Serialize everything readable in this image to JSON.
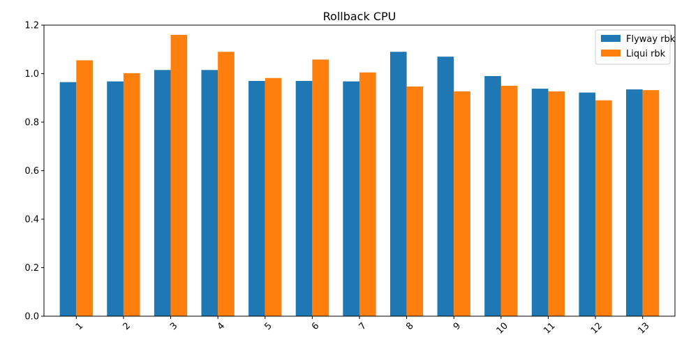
{
  "chart_data": {
    "type": "bar",
    "title": "Rollback CPU",
    "xlabel": "",
    "ylabel": "",
    "categories": [
      "1",
      "2",
      "3",
      "4",
      "5",
      "6",
      "7",
      "8",
      "9",
      "10",
      "11",
      "12",
      "13"
    ],
    "series": [
      {
        "name": "Flyway rbk",
        "color": "#1f77b4",
        "values": [
          0.965,
          0.968,
          1.015,
          1.015,
          0.97,
          0.97,
          0.968,
          1.09,
          1.07,
          0.99,
          0.938,
          0.922,
          0.935
        ]
      },
      {
        "name": "Liqui rbk",
        "color": "#ff7f0e",
        "values": [
          1.055,
          1.002,
          1.16,
          1.09,
          0.982,
          1.058,
          1.005,
          0.947,
          0.927,
          0.95,
          0.927,
          0.89,
          0.932
        ]
      }
    ],
    "ylim": [
      0,
      1.2
    ],
    "yticks": [
      0.0,
      0.2,
      0.4,
      0.6,
      0.8,
      1.0,
      1.2
    ],
    "ytick_labels": [
      "0.0",
      "0.2",
      "0.4",
      "0.6",
      "0.8",
      "1.0",
      "1.2"
    ],
    "grid": false,
    "legend_position": "top-right"
  }
}
